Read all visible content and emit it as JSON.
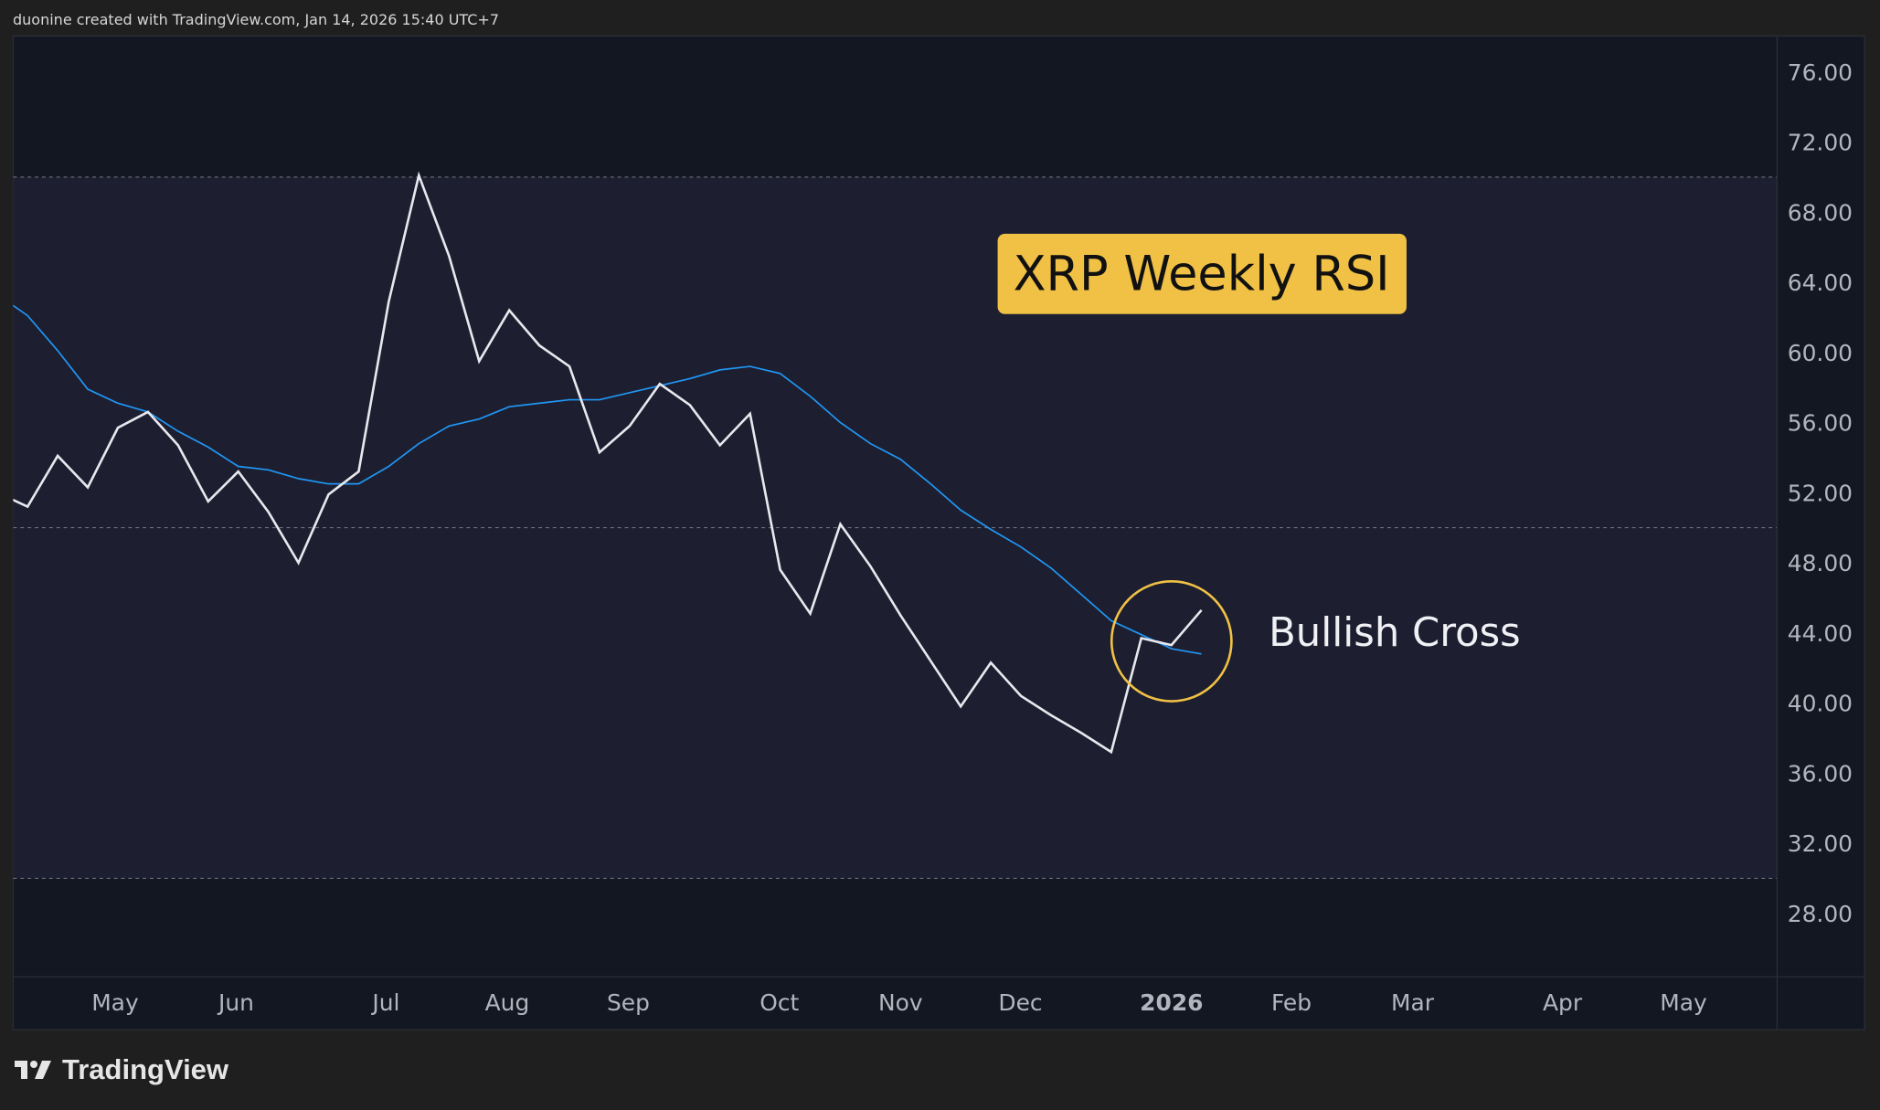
{
  "header": {
    "attribution": "duonine created with TradingView.com, Jan 14, 2026 15:40 UTC+7"
  },
  "footer": {
    "logo_text": "TradingView"
  },
  "colors": {
    "rsi": "#e8e8ee",
    "rsi_ma": "#2196f3",
    "annotation": "#f0c145",
    "band": "#1d1f31",
    "pane": "#131722"
  },
  "chart_data": {
    "type": "line",
    "title": "XRP Weekly RSI",
    "annotations": [
      {
        "text": "Bullish Cross",
        "date": "2026-01-05",
        "shape": "circle"
      }
    ],
    "ylim": [
      25,
      78
    ],
    "y_ticks": [
      "76.00",
      "72.00",
      "68.00",
      "64.00",
      "60.00",
      "56.00",
      "52.00",
      "48.00",
      "44.00",
      "40.00",
      "36.00",
      "32.00",
      "28.00"
    ],
    "x_ticks": [
      "May",
      "Jun",
      "Jul",
      "Aug",
      "Sep",
      "Oct",
      "Nov",
      "Dec",
      "2026",
      "Feb",
      "Mar",
      "Apr",
      "May"
    ],
    "bands": {
      "upper": 70,
      "middle": 50,
      "lower": 30
    },
    "grid": false,
    "x": [
      "2025-04-07",
      "2025-04-14",
      "2025-04-21",
      "2025-04-28",
      "2025-05-05",
      "2025-05-12",
      "2025-05-19",
      "2025-05-26",
      "2025-06-02",
      "2025-06-09",
      "2025-06-16",
      "2025-06-23",
      "2025-06-30",
      "2025-07-07",
      "2025-07-14",
      "2025-07-21",
      "2025-07-28",
      "2025-08-04",
      "2025-08-11",
      "2025-08-18",
      "2025-08-25",
      "2025-09-01",
      "2025-09-08",
      "2025-09-15",
      "2025-09-22",
      "2025-09-29",
      "2025-10-06",
      "2025-10-13",
      "2025-10-20",
      "2025-10-27",
      "2025-11-03",
      "2025-11-10",
      "2025-11-17",
      "2025-11-24",
      "2025-12-01",
      "2025-12-08",
      "2025-12-15",
      "2025-12-22",
      "2025-12-29",
      "2026-01-05",
      "2026-01-12"
    ],
    "series": [
      {
        "values": [
          52.0,
          51.2,
          54.1,
          52.3,
          55.7,
          56.6,
          54.7,
          51.5,
          53.2,
          50.9,
          48.0,
          51.9,
          53.2,
          62.9,
          70.1,
          65.5,
          59.5,
          62.4,
          60.4,
          59.2,
          54.3,
          55.8,
          58.2,
          57.0,
          54.7,
          56.5,
          47.6,
          45.1,
          50.2,
          47.8,
          45.0,
          42.4,
          39.8,
          42.3,
          40.4,
          39.3,
          38.3,
          37.2,
          43.7,
          43.3,
          45.3
        ]
      },
      {
        "values": [
          63.3,
          62.1,
          60.1,
          57.9,
          57.1,
          56.6,
          55.5,
          54.6,
          53.5,
          53.3,
          52.8,
          52.5,
          52.5,
          53.5,
          54.8,
          55.8,
          56.2,
          56.9,
          57.1,
          57.3,
          57.3,
          57.7,
          58.1,
          58.5,
          59.0,
          59.2,
          58.8,
          57.5,
          56.0,
          54.8,
          53.9,
          52.5,
          51.0,
          49.9,
          48.9,
          47.7,
          46.2,
          44.7,
          43.9,
          43.1,
          42.8
        ]
      }
    ]
  }
}
